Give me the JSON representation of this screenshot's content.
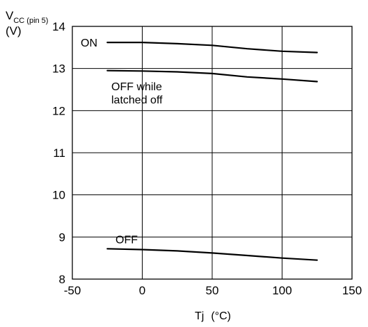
{
  "chart_data": {
    "type": "line",
    "title": "",
    "ylabel": {
      "main": "V",
      "subscript": "CC (pin 5)",
      "unit": "(V)"
    },
    "xlabel": {
      "name": "Tj",
      "unit": "(°C)"
    },
    "xlim": [
      -50,
      150
    ],
    "ylim": [
      8,
      14
    ],
    "x_ticks": [
      "-50",
      "0",
      "50",
      "100",
      "150"
    ],
    "y_ticks": [
      "8",
      "9",
      "10",
      "11",
      "12",
      "13",
      "14"
    ],
    "grid": true,
    "series": [
      {
        "label": "ON",
        "x": [
          -25,
          0,
          25,
          50,
          75,
          100,
          125
        ],
        "y": [
          13.62,
          13.62,
          13.59,
          13.55,
          13.47,
          13.41,
          13.38
        ]
      },
      {
        "label": "OFF while latched off",
        "label_lines": [
          "OFF while",
          "latched off"
        ],
        "x": [
          -25,
          0,
          25,
          50,
          75,
          100,
          125
        ],
        "y": [
          12.95,
          12.94,
          12.92,
          12.88,
          12.8,
          12.75,
          12.69
        ]
      },
      {
        "label": "OFF",
        "x": [
          -25,
          0,
          25,
          50,
          75,
          100,
          125
        ],
        "y": [
          8.72,
          8.7,
          8.67,
          8.62,
          8.56,
          8.5,
          8.45
        ]
      }
    ]
  }
}
